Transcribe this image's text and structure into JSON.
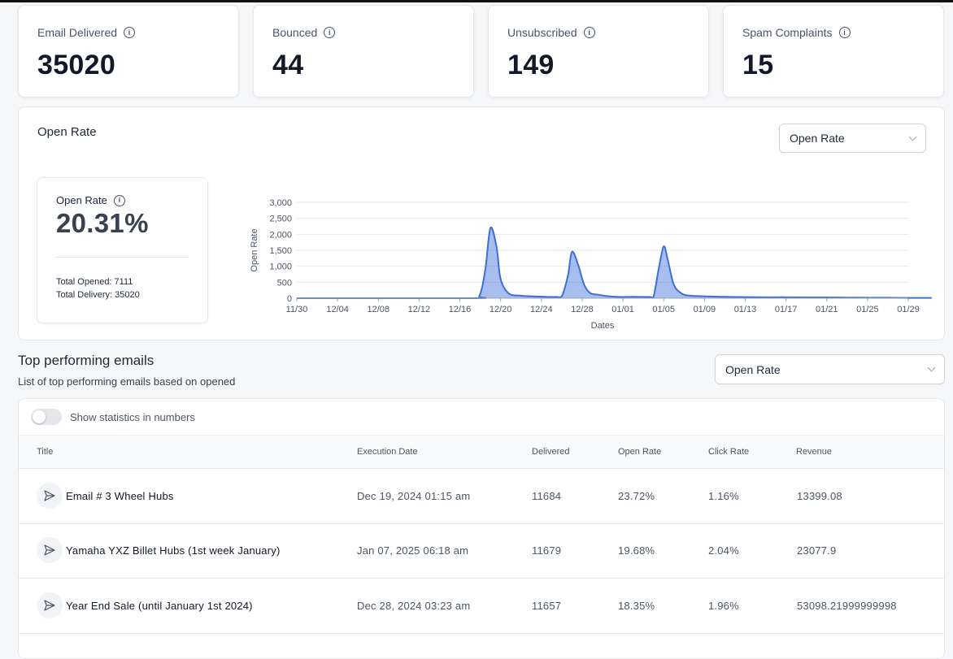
{
  "stats": [
    {
      "label": "Email Delivered",
      "value": "35020"
    },
    {
      "label": "Bounced",
      "value": "44"
    },
    {
      "label": "Unsubscribed",
      "value": "149"
    },
    {
      "label": "Spam Complaints",
      "value": "15"
    }
  ],
  "open_rate_panel": {
    "title": "Open Rate",
    "select_value": "Open Rate",
    "summary_label": "Open Rate",
    "summary_value": "20.31%",
    "total_opened": "Total Opened: 7111",
    "total_delivery": "Total Delivery: 35020"
  },
  "chart_data": {
    "type": "area",
    "xlabel": "Dates",
    "ylabel": "Open Rate",
    "ylim": [
      0,
      3000
    ],
    "yticks": [
      "0",
      "500",
      "1,000",
      "1,500",
      "2,000",
      "2,500",
      "3,000"
    ],
    "xticks": [
      "11/30",
      "12/04",
      "12/08",
      "12/12",
      "12/16",
      "12/20",
      "12/24",
      "12/28",
      "01/01",
      "01/05",
      "01/09",
      "01/13",
      "01/17",
      "01/21",
      "01/25",
      "01/29"
    ],
    "grid": true,
    "color": "#3b6fd9",
    "series": [
      {
        "x": [
          0,
          17,
          17.9,
          18.5,
          19,
          19.6,
          20,
          20.8,
          22,
          23.4,
          25,
          25.5,
          26,
          26.6,
          27,
          27.6,
          28.2,
          28.8,
          29.6,
          30.6,
          31.6,
          33,
          34,
          34.6,
          35,
          35.5,
          36,
          36.4,
          37,
          37.8,
          38.6,
          40,
          41,
          42.6,
          44,
          46,
          48,
          50,
          52,
          54,
          56,
          58,
          60,
          62.3
        ],
        "y": [
          0,
          0,
          60,
          900,
          2200,
          1600,
          600,
          150,
          80,
          55,
          40,
          40,
          60,
          700,
          1450,
          1050,
          420,
          160,
          110,
          60,
          40,
          45,
          40,
          40,
          40,
          900,
          1620,
          1200,
          420,
          140,
          80,
          60,
          50,
          40,
          35,
          30,
          30,
          25,
          25,
          20,
          15,
          15,
          10,
          10
        ]
      }
    ]
  },
  "top_emails": {
    "title": "Top performing emails",
    "subtitle": "List of top performing emails based on opened",
    "select_value": "Open Rate",
    "toggle_label": "Show statistics in numbers",
    "columns": [
      "Title",
      "Execution Date",
      "Delivered",
      "Open Rate",
      "Click Rate",
      "Revenue"
    ],
    "rows": [
      {
        "title": "Email # 3 Wheel Hubs",
        "date": "Dec 19, 2024 01:15 am",
        "delivered": "11684",
        "open_rate": "23.72%",
        "click_rate": "1.16%",
        "revenue": "13399.08"
      },
      {
        "title": "Yamaha YXZ Billet Hubs (1st week January)",
        "date": "Jan 07, 2025 06:18 am",
        "delivered": "11679",
        "open_rate": "19.68%",
        "click_rate": "2.04%",
        "revenue": "23077.9"
      },
      {
        "title": "Year End Sale (until January 1st 2024)",
        "date": "Dec 28, 2024 03:23 am",
        "delivered": "11657",
        "open_rate": "18.35%",
        "click_rate": "1.96%",
        "revenue": "53098.21999999998"
      }
    ]
  }
}
